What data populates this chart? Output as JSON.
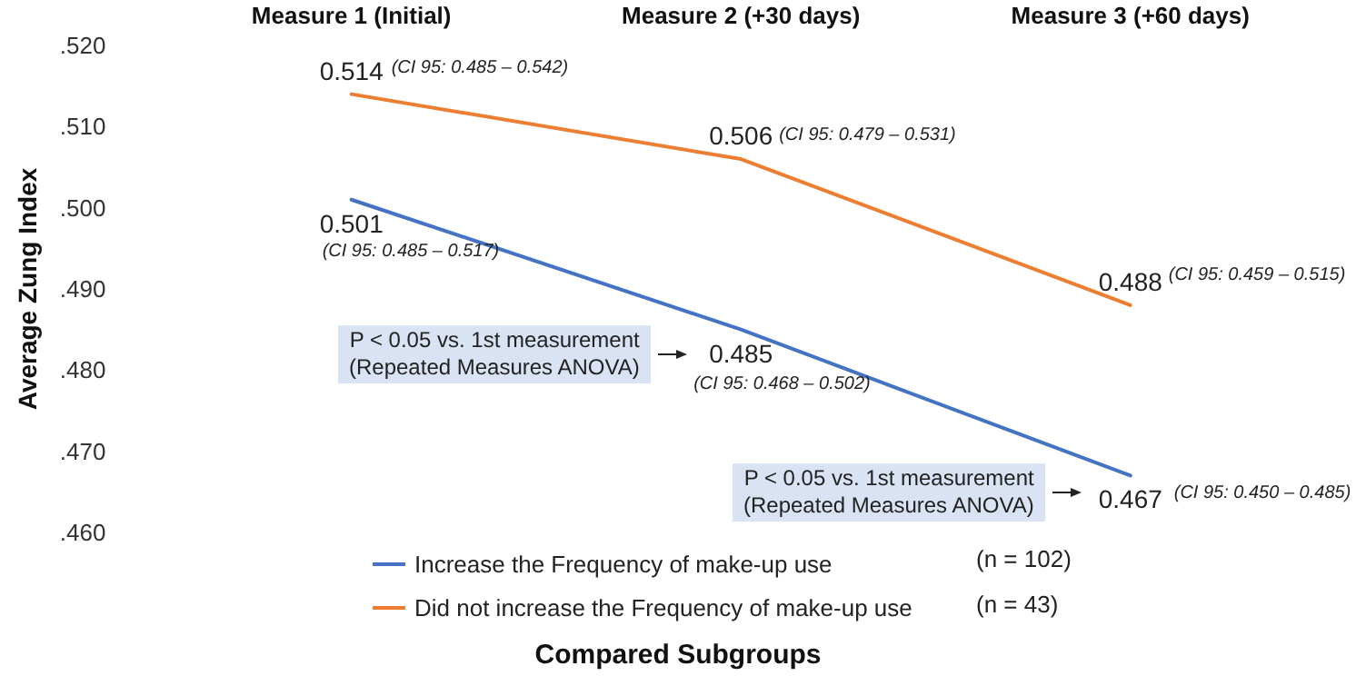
{
  "chart_data": {
    "type": "line",
    "xlabel": "Compared Subgroups",
    "ylabel": "Average Zung Index",
    "categories": [
      "Measure 1 (Initial)",
      "Measure 2 (+30 days)",
      "Measure 3 (+60 days)"
    ],
    "series": [
      {
        "name": "Increase the Frequency of make-up use",
        "color": "#4472c4",
        "values": [
          0.501,
          0.485,
          0.467
        ]
      },
      {
        "name": "Did not increase the Frequency of make-up use",
        "color": "#ed7d31",
        "values": [
          0.514,
          0.506,
          0.488
        ]
      }
    ],
    "ylim": [
      0.46,
      0.52
    ],
    "yticks": [
      {
        "value": 0.46,
        "label": ".460"
      },
      {
        "value": 0.47,
        "label": ".470"
      },
      {
        "value": 0.48,
        "label": ".480"
      },
      {
        "value": 0.49,
        "label": ".490"
      },
      {
        "value": 0.5,
        "label": ".500"
      },
      {
        "value": 0.51,
        "label": ".510"
      },
      {
        "value": 0.52,
        "label": ".520"
      }
    ],
    "grid": false,
    "legend": "bottom",
    "marker": "none",
    "line_style": "solid",
    "data_labels": true,
    "annotations": [
      {
        "text": "(CI 95: 0.485 – 0.542)",
        "x": "Measure 1 (Initial)",
        "y": 0.514
      },
      {
        "text": "(CI 95: 0.479 – 0.531)",
        "x": "Measure 2 (+30 days)",
        "y": 0.506
      },
      {
        "text": "(CI 95: 0.459 – 0.515)",
        "x": "Measure 3 (+60 days)",
        "y": 0.488
      },
      {
        "text": "(CI 95: 0.485 – 0.517)",
        "x": "Measure 1 (Initial)",
        "y": 0.501
      },
      {
        "text": "(CI 95: 0.468 – 0.502)",
        "x": "Measure 2 (+30 days)",
        "y": 0.485
      },
      {
        "text": "(CI 95: 0.450 – 0.485)",
        "x": "Measure 3 (+60 days)",
        "y": 0.467
      },
      "P < 0.05 vs. 1st measurement\n(Repeated Measures ANOVA)",
      "P < 0.05 vs. 1st measurement\n(Repeated Measures ANOVA)",
      "(n = 102)",
      "(n = 43)"
    ]
  }
}
